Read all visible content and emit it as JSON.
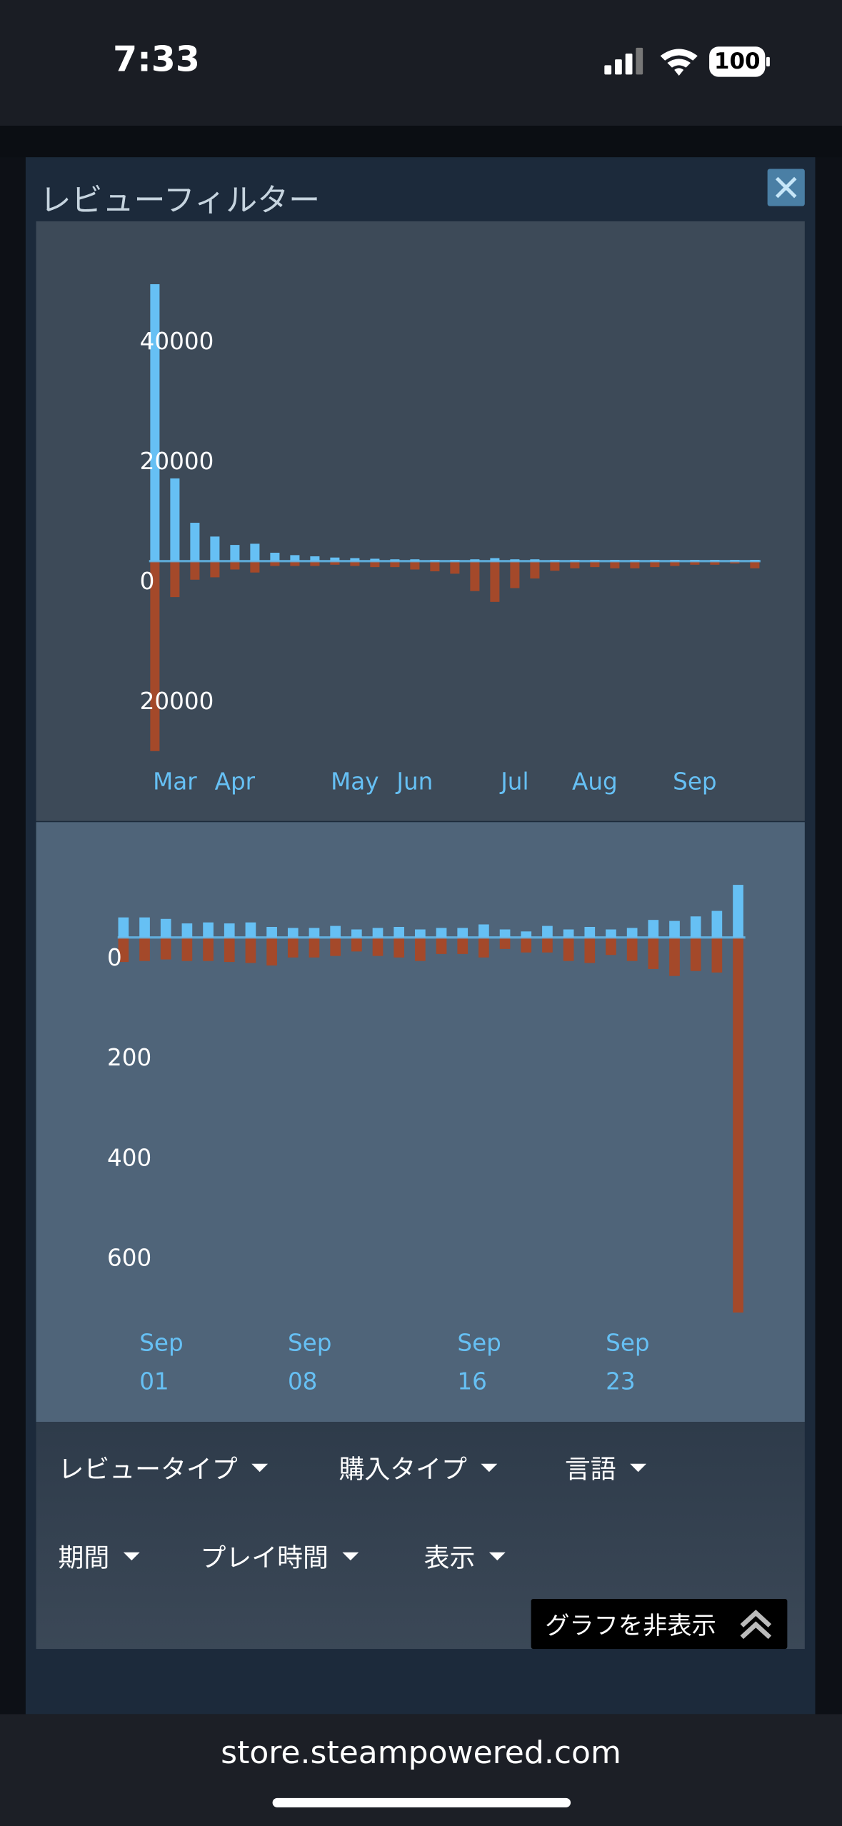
{
  "status_bar": {
    "time": "7:33",
    "battery": "100"
  },
  "dialog": {
    "title": "レビューフィルター"
  },
  "chart_data": [
    {
      "type": "bar",
      "categories": [
        null,
        "Mar",
        null,
        null,
        "Apr",
        null,
        null,
        null,
        null,
        null,
        "May",
        null,
        null,
        "Jun",
        null,
        null,
        null,
        null,
        "Jul",
        null,
        null,
        null,
        "Aug",
        null,
        null,
        null,
        null,
        "Sep",
        null,
        null,
        null
      ],
      "series": [
        {
          "color": "#66c0f4",
          "values": [
            46200,
            13800,
            6400,
            4100,
            2700,
            2900,
            1400,
            1000,
            800,
            600,
            500,
            400,
            300,
            300,
            200,
            200,
            300,
            500,
            300,
            300,
            200,
            200,
            200,
            200,
            200,
            200,
            200,
            200,
            200,
            200,
            200
          ]
        },
        {
          "color": "#a4492a",
          "values": [
            -31700,
            -6000,
            -3100,
            -2700,
            -1400,
            -1900,
            -800,
            -800,
            -800,
            -600,
            -800,
            -1000,
            -1000,
            -1400,
            -1700,
            -2100,
            -5000,
            -6800,
            -4500,
            -2900,
            -1600,
            -1200,
            -1000,
            -1200,
            -1200,
            -1000,
            -800,
            -600,
            -600,
            -400,
            -1200
          ]
        }
      ],
      "ylim": [
        -35000,
        50000
      ],
      "yticks": [
        {
          "value": -20000,
          "label": "20000"
        },
        0,
        20000,
        40000
      ]
    },
    {
      "type": "bar",
      "categories": [
        null,
        [
          "Sep",
          "01"
        ],
        null,
        null,
        null,
        null,
        null,
        null,
        [
          "Sep",
          "08"
        ],
        null,
        null,
        null,
        null,
        null,
        null,
        null,
        [
          "Sep",
          "16"
        ],
        null,
        null,
        null,
        null,
        null,
        null,
        [
          "Sep",
          "23"
        ],
        null,
        null,
        null,
        null,
        null,
        null
      ],
      "series": [
        {
          "color": "#66c0f4",
          "values": [
            40,
            40,
            37,
            28,
            30,
            28,
            30,
            21,
            19,
            19,
            23,
            16,
            19,
            21,
            16,
            19,
            19,
            26,
            16,
            12,
            23,
            16,
            21,
            16,
            19,
            35,
            33,
            42,
            53,
            105
          ]
        },
        {
          "color": "#a4492a",
          "values": [
            -49,
            -47,
            -44,
            -47,
            -47,
            -49,
            -51,
            -56,
            -40,
            -40,
            -37,
            -28,
            -37,
            -40,
            -47,
            -33,
            -33,
            -40,
            -23,
            -30,
            -30,
            -47,
            -51,
            -35,
            -47,
            -63,
            -77,
            -67,
            -70,
            -749
          ]
        }
      ],
      "ylim": [
        -760,
        120
      ],
      "yticks": [
        {
          "value": -600,
          "label": "600"
        },
        {
          "value": -400,
          "label": "400"
        },
        {
          "value": -200,
          "label": "200"
        },
        0
      ]
    }
  ],
  "filters": [
    "レビュータイプ",
    "購入タイプ",
    "言語",
    "期間",
    "プレイ時間",
    "表示"
  ],
  "hide_graph_button": "グラフを非表示",
  "url": "store.steampowered.com"
}
